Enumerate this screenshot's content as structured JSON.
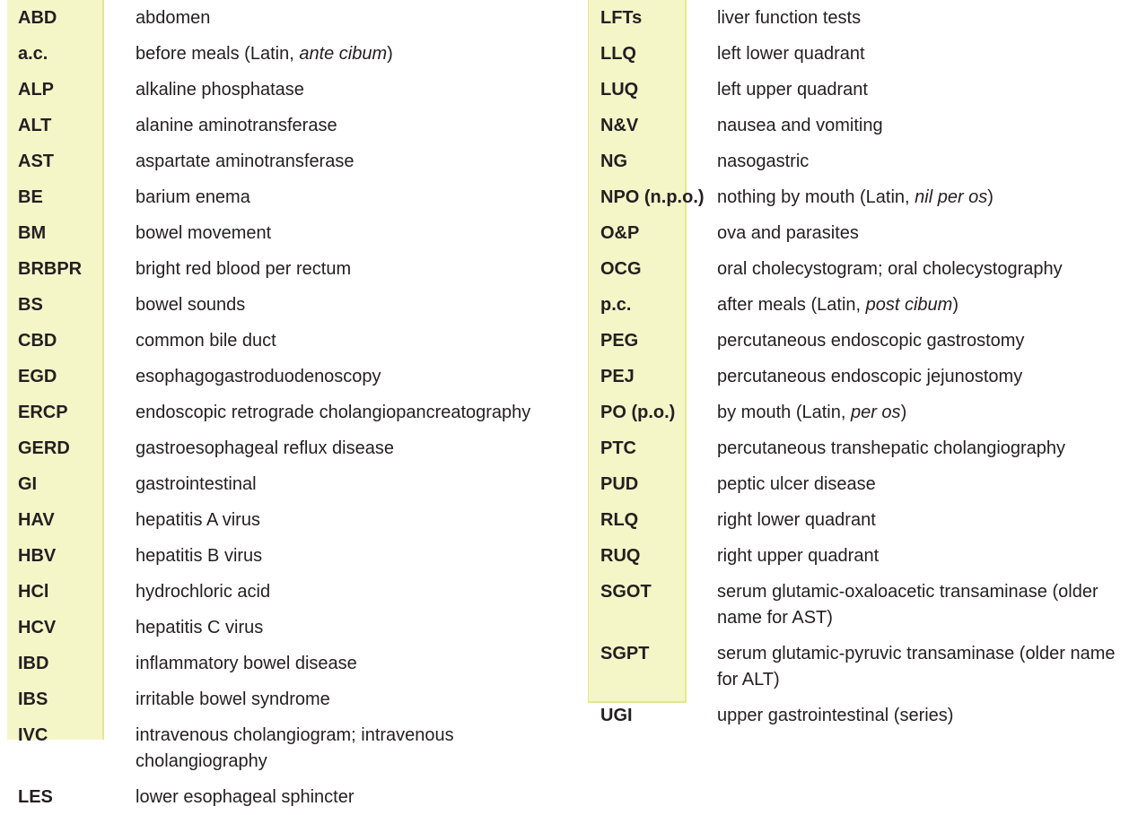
{
  "left": [
    {
      "abbr": "ABD",
      "meaning": "abdomen"
    },
    {
      "abbr": "a.c.",
      "meaning": "before meals (Latin, ",
      "latin": "ante cibum",
      "after": ")"
    },
    {
      "abbr": "ALP",
      "meaning": "alkaline phosphatase"
    },
    {
      "abbr": "ALT",
      "meaning": "alanine aminotransferase"
    },
    {
      "abbr": "AST",
      "meaning": "aspartate aminotransferase"
    },
    {
      "abbr": "BE",
      "meaning": "barium enema"
    },
    {
      "abbr": "BM",
      "meaning": "bowel movement"
    },
    {
      "abbr": "BRBPR",
      "meaning": "bright red blood per rectum"
    },
    {
      "abbr": "BS",
      "meaning": "bowel sounds"
    },
    {
      "abbr": "CBD",
      "meaning": "common bile duct"
    },
    {
      "abbr": "EGD",
      "meaning": "esophagogastroduodenoscopy"
    },
    {
      "abbr": "ERCP",
      "meaning": "endoscopic retrograde cholangiopancreatography"
    },
    {
      "abbr": "GERD",
      "meaning": "gastroesophageal reflux disease"
    },
    {
      "abbr": "GI",
      "meaning": "gastrointestinal"
    },
    {
      "abbr": "HAV",
      "meaning": "hepatitis A virus"
    },
    {
      "abbr": "HBV",
      "meaning": "hepatitis B virus"
    },
    {
      "abbr": "HCl",
      "meaning": "hydrochloric acid"
    },
    {
      "abbr": "HCV",
      "meaning": "hepatitis C virus"
    },
    {
      "abbr": "IBD",
      "meaning": "inflammatory bowel disease"
    },
    {
      "abbr": "IBS",
      "meaning": "irritable bowel syndrome"
    },
    {
      "abbr": "IVC",
      "meaning": "intravenous cholangiogram; intravenous cholangiography"
    },
    {
      "abbr": "LES",
      "meaning": "lower esophageal sphincter"
    }
  ],
  "right": [
    {
      "abbr": "LFTs",
      "meaning": "liver function tests"
    },
    {
      "abbr": "LLQ",
      "meaning": "left lower quadrant"
    },
    {
      "abbr": "LUQ",
      "meaning": "left upper quadrant"
    },
    {
      "abbr": "N&V",
      "meaning": "nausea and vomiting"
    },
    {
      "abbr": "NG",
      "meaning": "nasogastric"
    },
    {
      "abbr": "NPO (n.p.o.)",
      "meaning": "nothing by mouth (Latin, ",
      "latin": "nil per os",
      "after": ")"
    },
    {
      "abbr": "O&P",
      "meaning": "ova and parasites"
    },
    {
      "abbr": "OCG",
      "meaning": "oral cholecystogram; oral cholecystography"
    },
    {
      "abbr": "p.c.",
      "meaning": "after meals (Latin, ",
      "latin": "post cibum",
      "after": ")"
    },
    {
      "abbr": "PEG",
      "meaning": "percutaneous endoscopic gastrostomy"
    },
    {
      "abbr": "PEJ",
      "meaning": "percutaneous endoscopic jejunostomy"
    },
    {
      "abbr": "PO (p.o.)",
      "meaning": "by mouth (Latin, ",
      "latin": "per os",
      "after": ")"
    },
    {
      "abbr": "PTC",
      "meaning": "percutaneous transhepatic cholangiography"
    },
    {
      "abbr": "PUD",
      "meaning": "peptic ulcer disease"
    },
    {
      "abbr": "RLQ",
      "meaning": "right lower quadrant"
    },
    {
      "abbr": "RUQ",
      "meaning": "right upper quadrant"
    },
    {
      "abbr": "SGOT",
      "meaning": "serum glutamic-oxaloacetic transaminase (older name for AST)"
    },
    {
      "abbr": "SGPT",
      "meaning": "serum glutamic-pyruvic transaminase (older name for ALT)"
    },
    {
      "abbr": "UGI",
      "meaning": "upper gastrointestinal (series)"
    }
  ]
}
